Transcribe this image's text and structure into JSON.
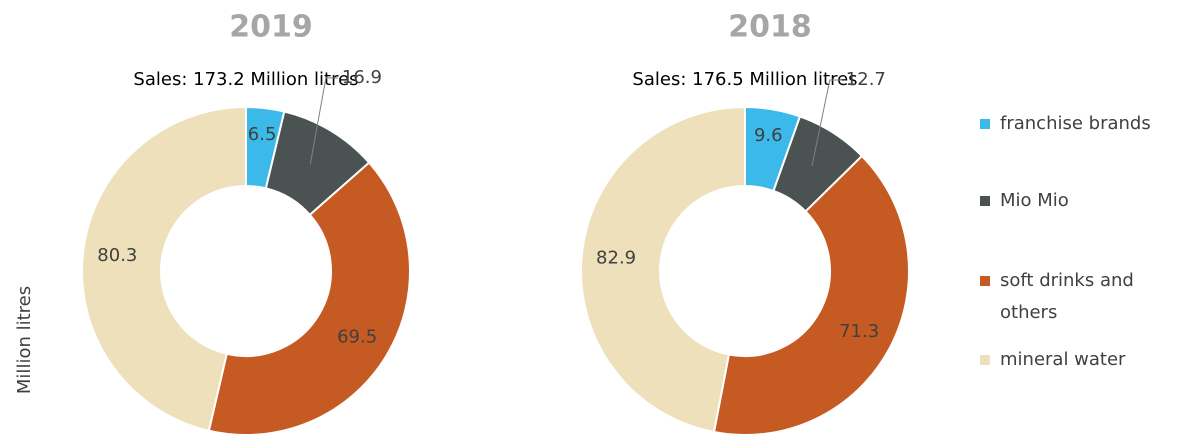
{
  "chart_data": [
    {
      "type": "donut",
      "title": "2019",
      "subtitle": "Sales: 173.2 Million litres",
      "ylabel": "Million litres",
      "categories": [
        "franchise brands",
        "Mio Mio",
        "soft drinks and others",
        "mineral water"
      ],
      "values": [
        6.5,
        16.9,
        69.5,
        80.3
      ],
      "colors": [
        "#3bb9e8",
        "#4a5352",
        "#c55a22",
        "#ede0bb"
      ]
    },
    {
      "type": "donut",
      "title": "2018",
      "subtitle": "Sales: 176.5 Million litres",
      "categories": [
        "franchise brands",
        "Mio Mio",
        "soft drinks and others",
        "mineral water"
      ],
      "values": [
        9.6,
        12.7,
        71.3,
        82.9
      ],
      "colors": [
        "#3bb9e8",
        "#4a5352",
        "#c55a22",
        "#ede0bb"
      ]
    }
  ]
}
